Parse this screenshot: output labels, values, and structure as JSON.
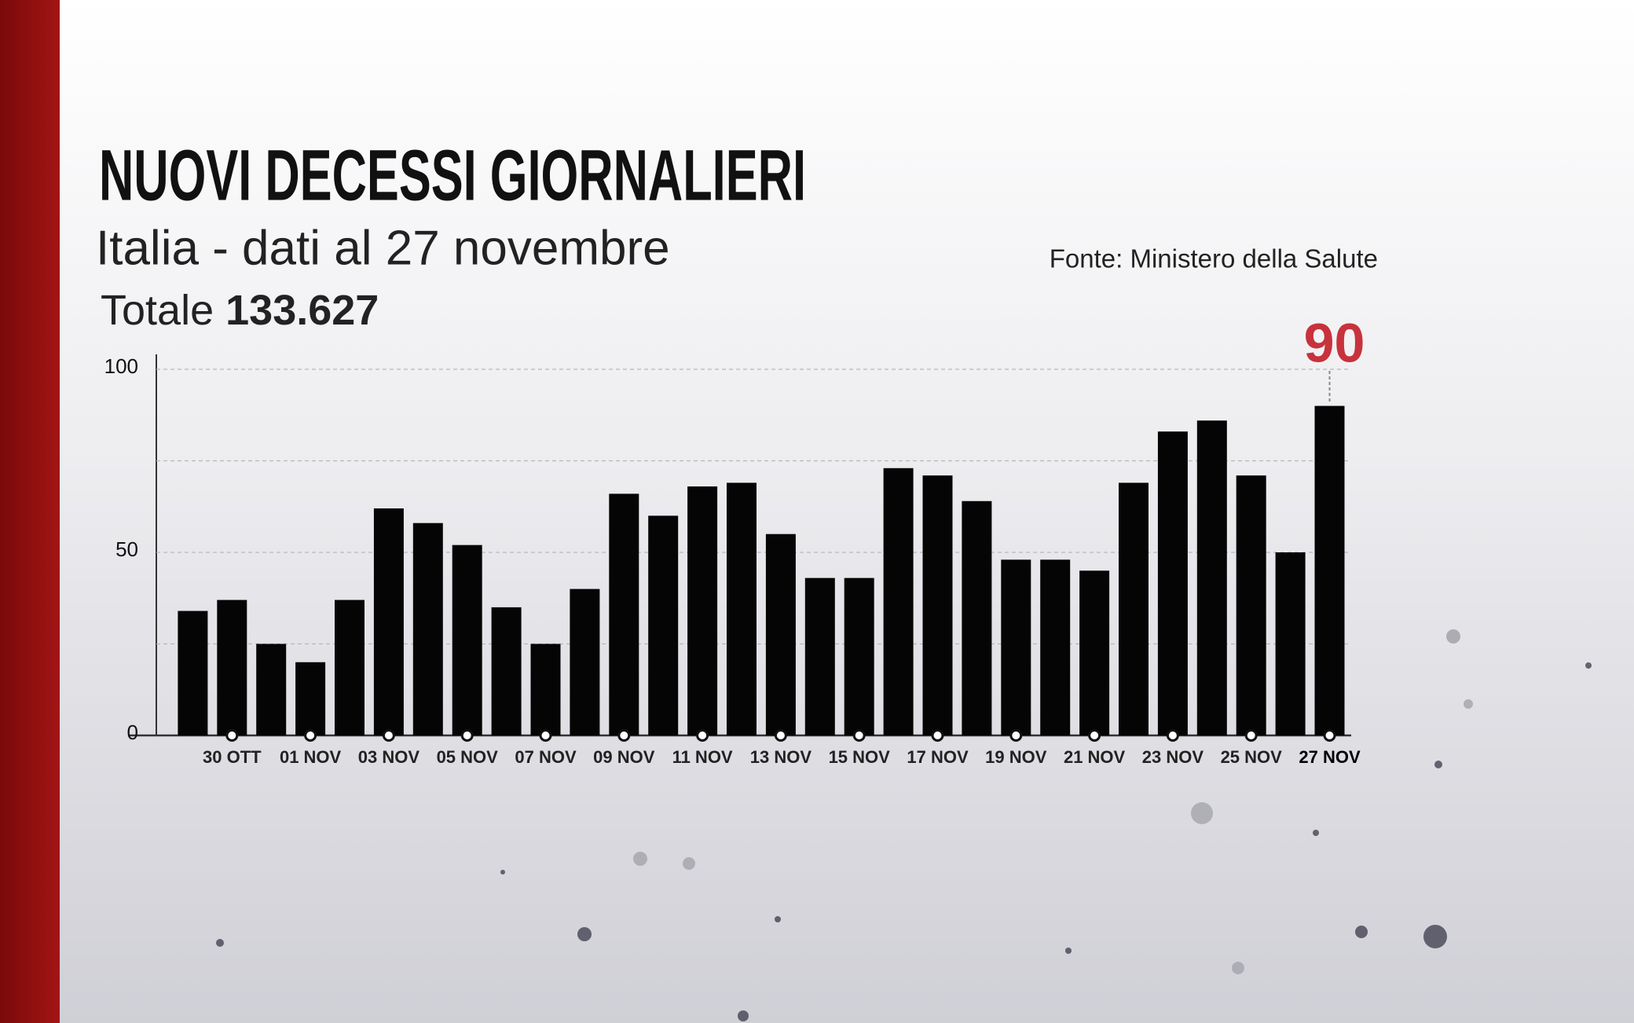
{
  "chart_data": {
    "type": "bar",
    "title": "NUOVI DECESSI GIORNALIERI",
    "subtitle": "Italia - dati al 27 novembre",
    "source": "Fonte: Ministero della Salute",
    "total_label": "Totale",
    "total_value": "133.627",
    "categories": [
      null,
      "30 OTT",
      null,
      "01 NOV",
      null,
      "03 NOV",
      null,
      "05 NOV",
      null,
      "07 NOV",
      null,
      "09 NOV",
      null,
      "11 NOV",
      null,
      "13 NOV",
      null,
      "15 NOV",
      null,
      "17 NOV",
      null,
      "19 NOV",
      null,
      "21 NOV",
      null,
      "23 NOV",
      null,
      "25 NOV",
      null,
      "27 NOV"
    ],
    "values": [
      34,
      37,
      25,
      20,
      37,
      62,
      58,
      52,
      35,
      25,
      40,
      66,
      60,
      68,
      69,
      55,
      43,
      43,
      73,
      71,
      64,
      48,
      48,
      45,
      69,
      83,
      86,
      71,
      50,
      90
    ],
    "value_labels": [
      null,
      null,
      null,
      null,
      null,
      null,
      null,
      null,
      null,
      null,
      null,
      null,
      null,
      null,
      null,
      null,
      null,
      null,
      null,
      null,
      null,
      null,
      null,
      null,
      null,
      null,
      null,
      null,
      null,
      "90"
    ],
    "color": "#050505",
    "ylim": [
      0,
      100
    ],
    "yticks": [
      0,
      50,
      100
    ],
    "minor_yticks": [
      25,
      75
    ],
    "grid": true
  }
}
